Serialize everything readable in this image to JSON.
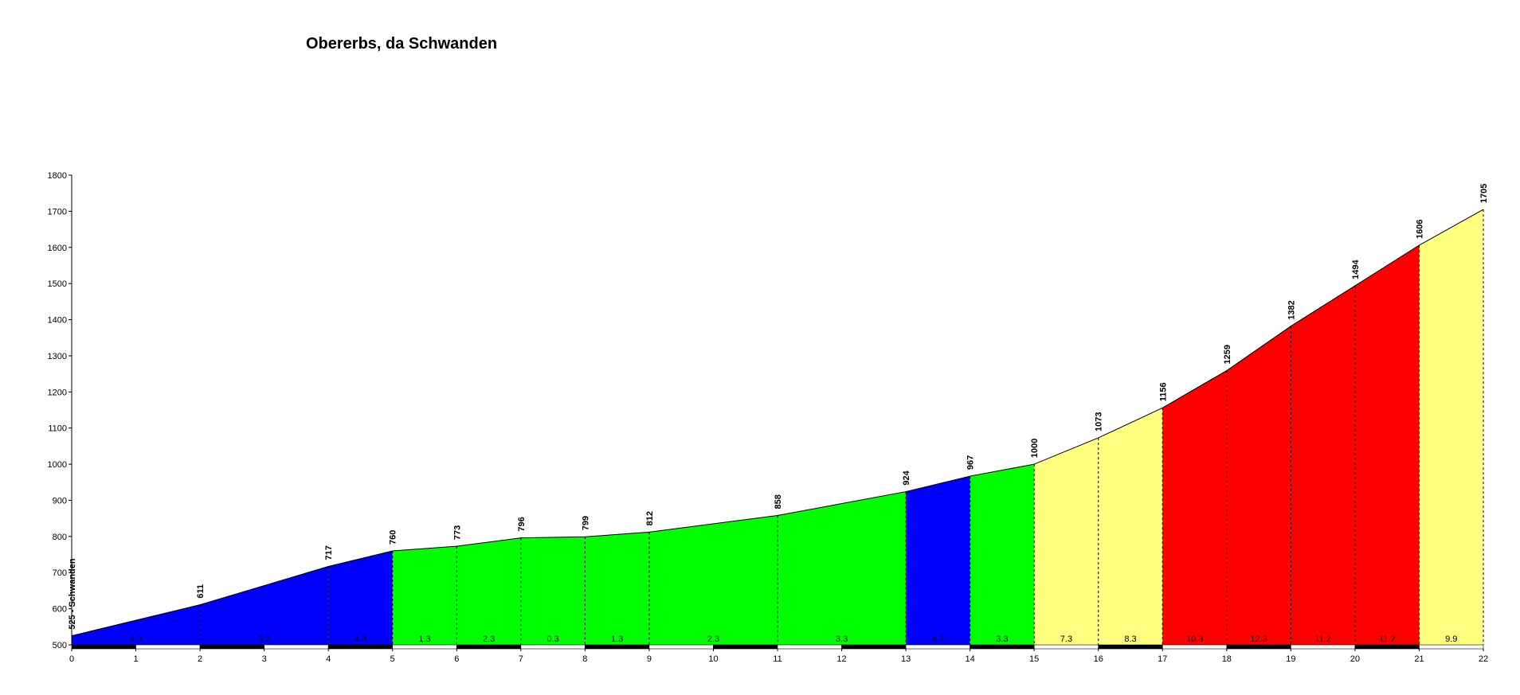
{
  "chart_data": {
    "type": "area",
    "title": "Obererbs, da Schwanden",
    "xlabel": "",
    "ylabel": "",
    "xlim": [
      0,
      22
    ],
    "ylim": [
      500,
      1800
    ],
    "y_ticks": [
      500,
      600,
      700,
      800,
      900,
      1000,
      1100,
      1200,
      1300,
      1400,
      1500,
      1600,
      1700,
      1800
    ],
    "x_ticks": [
      0,
      1,
      2,
      3,
      4,
      5,
      6,
      7,
      8,
      9,
      10,
      11,
      12,
      13,
      14,
      15,
      16,
      17,
      18,
      19,
      20,
      21,
      22
    ],
    "start_label": "525 - Schwanden",
    "points": [
      {
        "x": 0,
        "elev": 525
      },
      {
        "x": 2,
        "elev": 611
      },
      {
        "x": 4,
        "elev": 717
      },
      {
        "x": 5,
        "elev": 760
      },
      {
        "x": 6,
        "elev": 773
      },
      {
        "x": 7,
        "elev": 796
      },
      {
        "x": 8,
        "elev": 799
      },
      {
        "x": 9,
        "elev": 812
      },
      {
        "x": 11,
        "elev": 858
      },
      {
        "x": 13,
        "elev": 924
      },
      {
        "x": 14,
        "elev": 967
      },
      {
        "x": 15,
        "elev": 1000
      },
      {
        "x": 16,
        "elev": 1073
      },
      {
        "x": 17,
        "elev": 1156
      },
      {
        "x": 18,
        "elev": 1259
      },
      {
        "x": 19,
        "elev": 1382
      },
      {
        "x": 20,
        "elev": 1494
      },
      {
        "x": 21,
        "elev": 1606
      },
      {
        "x": 22,
        "elev": 1705
      }
    ],
    "segments": [
      {
        "from": 0,
        "to": 2,
        "gradient": "4.3",
        "color": "#0000FF"
      },
      {
        "from": 2,
        "to": 4,
        "gradient": "5.3",
        "color": "#0000FF"
      },
      {
        "from": 4,
        "to": 5,
        "gradient": "4.3",
        "color": "#0000FF"
      },
      {
        "from": 5,
        "to": 6,
        "gradient": "1.3",
        "color": "#00FF00"
      },
      {
        "from": 6,
        "to": 7,
        "gradient": "2.3",
        "color": "#00FF00"
      },
      {
        "from": 7,
        "to": 8,
        "gradient": "0.3",
        "color": "#00FF00"
      },
      {
        "from": 8,
        "to": 9,
        "gradient": "1.3",
        "color": "#00FF00"
      },
      {
        "from": 9,
        "to": 11,
        "gradient": "2.3",
        "color": "#00FF00"
      },
      {
        "from": 11,
        "to": 13,
        "gradient": "3.3",
        "color": "#00FF00"
      },
      {
        "from": 13,
        "to": 14,
        "gradient": "4.3",
        "color": "#0000FF"
      },
      {
        "from": 14,
        "to": 15,
        "gradient": "3.3",
        "color": "#00FF00"
      },
      {
        "from": 15,
        "to": 16,
        "gradient": "7.3",
        "color": "#FFFF80"
      },
      {
        "from": 16,
        "to": 17,
        "gradient": "8.3",
        "color": "#FFFF80"
      },
      {
        "from": 17,
        "to": 18,
        "gradient": "10.3",
        "color": "#FF0000"
      },
      {
        "from": 18,
        "to": 19,
        "gradient": "12.3",
        "color": "#FF0000"
      },
      {
        "from": 19,
        "to": 20,
        "gradient": "11.2",
        "color": "#FF0000"
      },
      {
        "from": 20,
        "to": 21,
        "gradient": "11.2",
        "color": "#FF0000"
      },
      {
        "from": 21,
        "to": 22,
        "gradient": "9.9",
        "color": "#FFFF80"
      }
    ],
    "grid": false,
    "legend": "none"
  }
}
